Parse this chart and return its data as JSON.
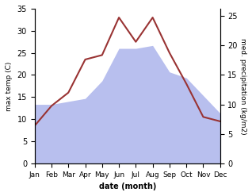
{
  "months": [
    "Jan",
    "Feb",
    "Mar",
    "Apr",
    "May",
    "Jun",
    "Jul",
    "Aug",
    "Sep",
    "Oct",
    "Nov",
    "Dec"
  ],
  "temperature": [
    8.5,
    13.0,
    16.0,
    23.5,
    24.5,
    33.0,
    27.5,
    33.0,
    25.0,
    18.0,
    10.5,
    9.5
  ],
  "precipitation": [
    10.0,
    10.0,
    10.5,
    11.0,
    14.0,
    19.5,
    19.5,
    20.0,
    15.5,
    14.5,
    11.5,
    8.5
  ],
  "temp_color": "#993333",
  "precip_fill_color": "#b8bfee",
  "temp_ylim": [
    0,
    35
  ],
  "temp_yticks": [
    0,
    5,
    10,
    15,
    20,
    25,
    30,
    35
  ],
  "precip_ylim": [
    0,
    26.25
  ],
  "precip_yticks": [
    0,
    5,
    10,
    15,
    20,
    25
  ],
  "precip_scale_factor": 1.3333,
  "ylabel_left": "max temp (C)",
  "ylabel_right": "med. precipitation (kg/m2)",
  "xlabel": "date (month)"
}
